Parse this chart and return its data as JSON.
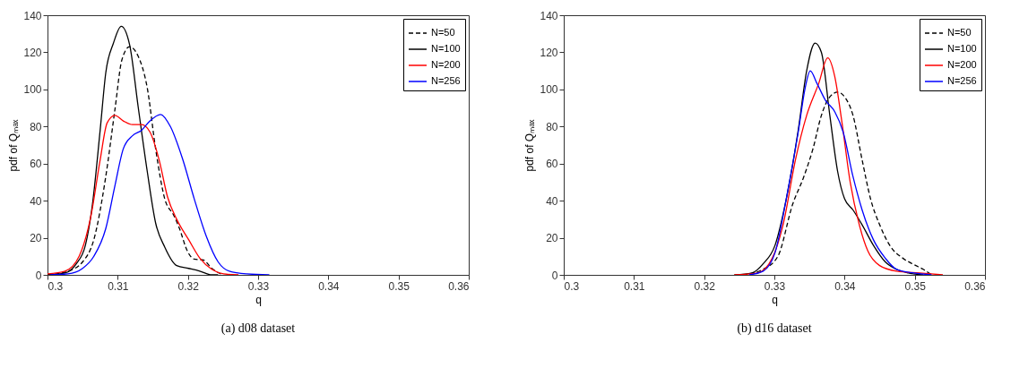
{
  "chart_data": [
    {
      "type": "line",
      "title": "(a)  d08 dataset",
      "xlabel": "q",
      "ylabel": "pdf of Qₘₐₓ",
      "xlim": [
        0.3,
        0.36
      ],
      "ylim": [
        0,
        140
      ],
      "xticks": [
        0.3,
        0.31,
        0.32,
        0.33,
        0.34,
        0.35,
        0.36
      ],
      "yticks": [
        0,
        20,
        40,
        60,
        80,
        100,
        120,
        140
      ],
      "grid": false,
      "legend": "top right",
      "series": [
        {
          "name": "N=50",
          "color": "#000000",
          "line_style": "dashed",
          "x": [
            0.3,
            0.3029,
            0.305,
            0.3066,
            0.3083,
            0.3096,
            0.3106,
            0.3117,
            0.3129,
            0.3142,
            0.3154,
            0.3167,
            0.318,
            0.3188,
            0.3199,
            0.3209,
            0.3222,
            0.3234,
            0.3247
          ],
          "values": [
            0,
            2,
            7,
            19,
            53,
            89,
            116,
            123,
            118,
            101,
            68,
            41,
            32,
            25,
            13,
            8.5,
            8,
            3.5,
            0.5
          ]
        },
        {
          "name": "N=100",
          "color": "#000000",
          "line_style": "solid",
          "x": [
            0.3,
            0.3025,
            0.3041,
            0.3054,
            0.3064,
            0.3075,
            0.3083,
            0.3094,
            0.3105,
            0.3117,
            0.3129,
            0.3142,
            0.3154,
            0.3167,
            0.3184,
            0.3201,
            0.3217,
            0.3234,
            0.3243
          ],
          "values": [
            0,
            1,
            6,
            16,
            38,
            78,
            109,
            125,
            134,
            124,
            91,
            56,
            28,
            15,
            5,
            3.5,
            2,
            0,
            0
          ]
        },
        {
          "name": "N=200",
          "color": "#ff0000",
          "line_style": "solid",
          "x": [
            0.3,
            0.3025,
            0.3045,
            0.3062,
            0.3075,
            0.3085,
            0.3096,
            0.3108,
            0.3121,
            0.3134,
            0.3146,
            0.3159,
            0.3171,
            0.3184,
            0.3201,
            0.3217,
            0.3234,
            0.3251,
            0.3272
          ],
          "values": [
            0.5,
            2,
            10,
            32,
            62,
            82,
            86,
            83,
            81,
            81,
            77,
            62,
            42,
            30,
            19,
            9,
            3,
            0.5,
            0
          ]
        },
        {
          "name": "N=256",
          "color": "#0000ff",
          "line_style": "solid",
          "x": [
            0.3004,
            0.3029,
            0.305,
            0.3066,
            0.3083,
            0.3096,
            0.3108,
            0.3121,
            0.3134,
            0.3146,
            0.3161,
            0.3175,
            0.3192,
            0.3209,
            0.3226,
            0.3243,
            0.3259,
            0.3284,
            0.3316
          ],
          "values": [
            0,
            0.5,
            3.5,
            10,
            25,
            48,
            68,
            75,
            78,
            83,
            86.5,
            80,
            63,
            41,
            21,
            7,
            2,
            0.5,
            0
          ]
        }
      ]
    },
    {
      "type": "line",
      "title": "(b)  d16 dataset",
      "xlabel": "q",
      "ylabel": "pdf of Qₘₐₓ",
      "xlim": [
        0.3,
        0.36
      ],
      "ylim": [
        0,
        140
      ],
      "xticks": [
        0.3,
        0.31,
        0.32,
        0.33,
        0.34,
        0.35,
        0.36
      ],
      "yticks": [
        0,
        20,
        40,
        60,
        80,
        100,
        120,
        140
      ],
      "grid": false,
      "legend": "top right",
      "series": [
        {
          "name": "N=50",
          "color": "#000000",
          "line_style": "dashed",
          "x": [
            0.3255,
            0.3284,
            0.3305,
            0.3326,
            0.3342,
            0.3355,
            0.3367,
            0.3379,
            0.339,
            0.34,
            0.3412,
            0.3425,
            0.3437,
            0.345,
            0.3466,
            0.3483,
            0.3499,
            0.3512,
            0.3524
          ],
          "values": [
            0,
            3,
            10,
            38,
            53,
            68,
            86,
            96,
            98.5,
            96,
            86,
            62,
            41,
            27,
            15,
            9,
            5.5,
            3,
            0
          ]
        },
        {
          "name": "N=100",
          "color": "#000000",
          "line_style": "solid",
          "x": [
            0.3243,
            0.3268,
            0.3284,
            0.3301,
            0.3317,
            0.3334,
            0.3346,
            0.3358,
            0.3367,
            0.3379,
            0.339,
            0.34,
            0.3412,
            0.3425,
            0.3441,
            0.3458,
            0.3474,
            0.3491,
            0.3512
          ],
          "values": [
            0,
            1,
            6,
            16,
            41,
            78,
            110,
            125,
            120,
            86,
            56,
            41,
            35,
            27,
            16,
            7,
            3,
            1,
            0
          ]
        },
        {
          "name": "N=200",
          "color": "#ff0000",
          "line_style": "solid",
          "x": [
            0.3243,
            0.3276,
            0.3297,
            0.3313,
            0.333,
            0.3346,
            0.3363,
            0.3376,
            0.3386,
            0.3396,
            0.3408,
            0.3421,
            0.3433,
            0.345,
            0.3474,
            0.3507,
            0.354
          ],
          "values": [
            0,
            1,
            9,
            28,
            62,
            86,
            103,
            117,
            107,
            83,
            50,
            27,
            13,
            5,
            2,
            1,
            0
          ]
        },
        {
          "name": "N=256",
          "color": "#0000ff",
          "line_style": "solid",
          "x": [
            0.3264,
            0.3284,
            0.3301,
            0.3317,
            0.3334,
            0.3344,
            0.3351,
            0.3361,
            0.3373,
            0.3386,
            0.3398,
            0.3412,
            0.3425,
            0.3441,
            0.3458,
            0.3474,
            0.3499,
            0.3524
          ],
          "values": [
            0,
            2,
            12,
            41,
            77,
            101,
            110,
            103,
            94,
            88,
            77,
            53,
            35,
            19,
            9,
            3,
            1,
            0
          ]
        }
      ]
    }
  ]
}
